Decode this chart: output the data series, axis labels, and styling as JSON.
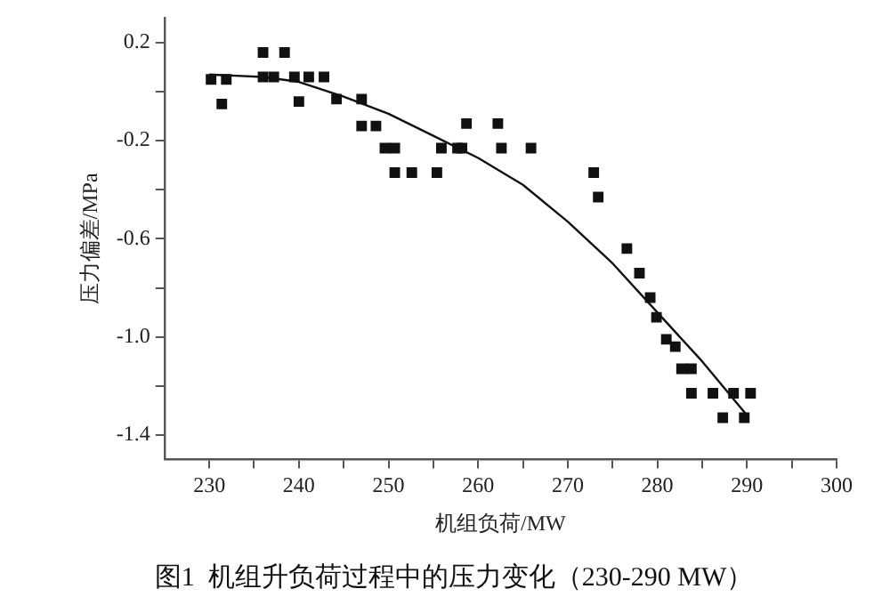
{
  "chart_data": {
    "type": "scatter",
    "title": "图1  机组升负荷过程中的压力变化（230-290 MW）",
    "xlabel": "机组负荷/MW",
    "ylabel": "压力偏差/MPa",
    "xlim": [
      225,
      300
    ],
    "ylim": [
      -1.5,
      0.3
    ],
    "xticks": [
      230,
      {
        "value": 235,
        "label": null
      },
      240,
      {
        "value": 245,
        "label": null
      },
      250,
      {
        "value": 255,
        "label": null
      },
      260,
      {
        "value": 265,
        "label": null
      },
      270,
      {
        "value": 275,
        "label": null
      },
      280,
      {
        "value": 285,
        "label": null
      },
      290,
      {
        "value": 295,
        "label": null
      },
      300
    ],
    "yticks": [
      0.2,
      {
        "value": 0,
        "label": null
      },
      -0.2,
      {
        "value": -0.4,
        "label": null
      },
      -0.6,
      {
        "value": -0.8,
        "label": null
      },
      {
        "value": -1,
        "label": "-1.0"
      },
      {
        "value": -1.2,
        "label": null
      },
      -1.4
    ],
    "grid": false,
    "legend": false,
    "marker": "square",
    "series": [
      {
        "color": "#111111",
        "x": [
          230.2,
          231.9,
          236,
          238.4,
          236,
          237.2,
          239.5,
          241.1,
          242.8,
          231.4,
          240,
          244.2,
          247,
          247,
          248.6,
          249.6,
          250.7,
          250.7,
          252.6,
          255.4,
          255.9,
          257.7,
          258.7,
          262.2,
          258.2,
          262.6,
          265.9,
          272.9,
          273.4,
          276.6,
          278,
          279.2,
          279.9,
          281,
          282,
          282.7,
          283.8,
          283.8,
          286.2,
          288.5,
          290.4,
          287.3,
          289.7
        ],
        "values": [
          0.05,
          0.05,
          0.16,
          0.16,
          0.06,
          0.06,
          0.06,
          0.06,
          0.06,
          -0.05,
          -0.04,
          -0.03,
          -0.03,
          -0.14,
          -0.14,
          -0.23,
          -0.23,
          -0.33,
          -0.33,
          -0.33,
          -0.23,
          -0.23,
          -0.13,
          -0.13,
          -0.23,
          -0.23,
          -0.23,
          -0.33,
          -0.43,
          -0.64,
          -0.74,
          -0.84,
          -0.92,
          -1.01,
          -1.04,
          -1.13,
          -1.13,
          -1.23,
          -1.23,
          -1.23,
          -1.23,
          -1.33,
          -1.33
        ]
      },
      {
        "type": "line",
        "color": "#111111",
        "marker": "none",
        "line_style": "solid",
        "x": [
          230,
          236,
          240,
          245,
          250,
          255,
          260,
          265,
          270,
          275,
          280,
          285,
          290
        ],
        "values": [
          0.07,
          0.06,
          0.04,
          -0.02,
          -0.09,
          -0.18,
          -0.27,
          -0.38,
          -0.53,
          -0.7,
          -0.9,
          -1.1,
          -1.32
        ]
      }
    ]
  }
}
